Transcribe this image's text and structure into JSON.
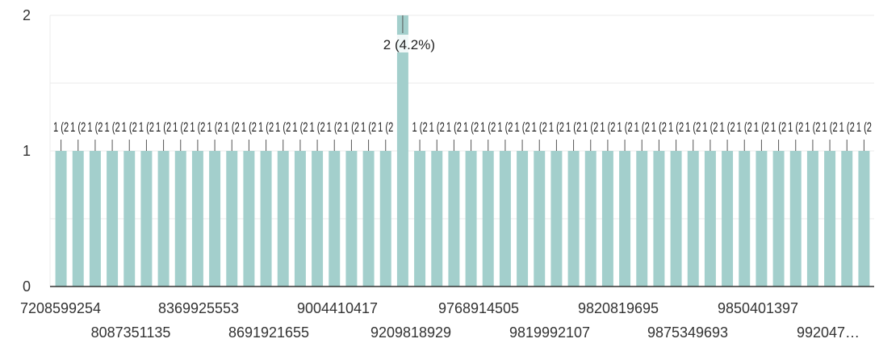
{
  "chart_data": {
    "type": "bar",
    "title": "",
    "xlabel": "",
    "ylabel": "",
    "ylim": [
      0,
      2
    ],
    "y_ticks": [
      "0",
      "1",
      "2"
    ],
    "grid": true,
    "bar_color": "#a3cfcc",
    "x_tick_labels_row1": [
      "7208599254",
      "8369925553",
      "9004410417",
      "9768914505",
      "9820819695",
      "9850401397"
    ],
    "x_tick_labels_row2": [
      "8087351135",
      "8691921655",
      "9209818929",
      "9819992107",
      "9875349693",
      "992047…"
    ],
    "values": [
      1,
      1,
      1,
      1,
      1,
      1,
      1,
      1,
      1,
      1,
      1,
      1,
      1,
      1,
      1,
      1,
      1,
      1,
      1,
      1,
      2,
      1,
      1,
      1,
      1,
      1,
      1,
      1,
      1,
      1,
      1,
      1,
      1,
      1,
      1,
      1,
      1,
      1,
      1,
      1,
      1,
      1,
      1,
      1,
      1,
      1,
      1,
      1
    ],
    "data_label_highlight": "2 (4.2%)"
  }
}
